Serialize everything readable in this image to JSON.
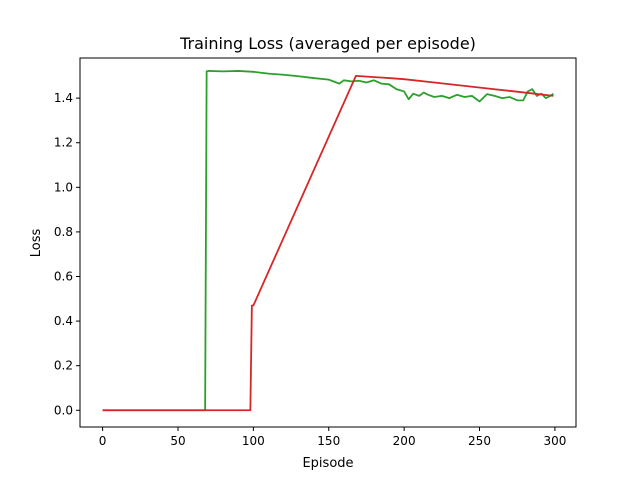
{
  "chart_data": {
    "type": "line",
    "title": "Training Loss (averaged per episode)",
    "xlabel": "Episode",
    "ylabel": "Loss",
    "xlim": [
      -15,
      314
    ],
    "ylim": [
      -0.075,
      1.58
    ],
    "xticks": [
      0,
      50,
      100,
      150,
      200,
      250,
      300
    ],
    "yticks": [
      0.0,
      0.2,
      0.4,
      0.6,
      0.8,
      1.0,
      1.2,
      1.4
    ],
    "ytick_labels": [
      "0.0",
      "0.2",
      "0.4",
      "0.6",
      "0.8",
      "1.0",
      "1.2",
      "1.4"
    ],
    "grid": false,
    "legend": "none",
    "series": [
      {
        "color": "#2ca02c",
        "x": [
          0,
          68,
          69,
          70,
          80,
          90,
          100,
          110,
          120,
          130,
          140,
          150,
          157,
          160,
          165,
          170,
          175,
          180,
          185,
          190,
          195,
          200,
          203,
          206,
          210,
          213,
          216,
          220,
          225,
          230,
          235,
          240,
          245,
          250,
          255,
          260,
          265,
          270,
          275,
          279,
          282,
          285,
          288,
          291,
          294,
          297,
          299
        ],
        "y": [
          0.0,
          0.0,
          1.52,
          1.522,
          1.52,
          1.522,
          1.518,
          1.51,
          1.505,
          1.498,
          1.49,
          1.483,
          1.465,
          1.48,
          1.475,
          1.478,
          1.47,
          1.48,
          1.465,
          1.462,
          1.44,
          1.43,
          1.395,
          1.42,
          1.41,
          1.425,
          1.415,
          1.405,
          1.41,
          1.4,
          1.415,
          1.405,
          1.41,
          1.385,
          1.418,
          1.41,
          1.4,
          1.405,
          1.39,
          1.39,
          1.43,
          1.44,
          1.41,
          1.42,
          1.4,
          1.41,
          1.42
        ]
      },
      {
        "color": "#d62728",
        "x": [
          0,
          98,
          99,
          100,
          168,
          190,
          200,
          220,
          240,
          260,
          280,
          299
        ],
        "y": [
          0.0,
          0.0,
          0.47,
          0.47,
          1.5,
          1.49,
          1.485,
          1.47,
          1.455,
          1.44,
          1.425,
          1.41
        ]
      }
    ]
  }
}
